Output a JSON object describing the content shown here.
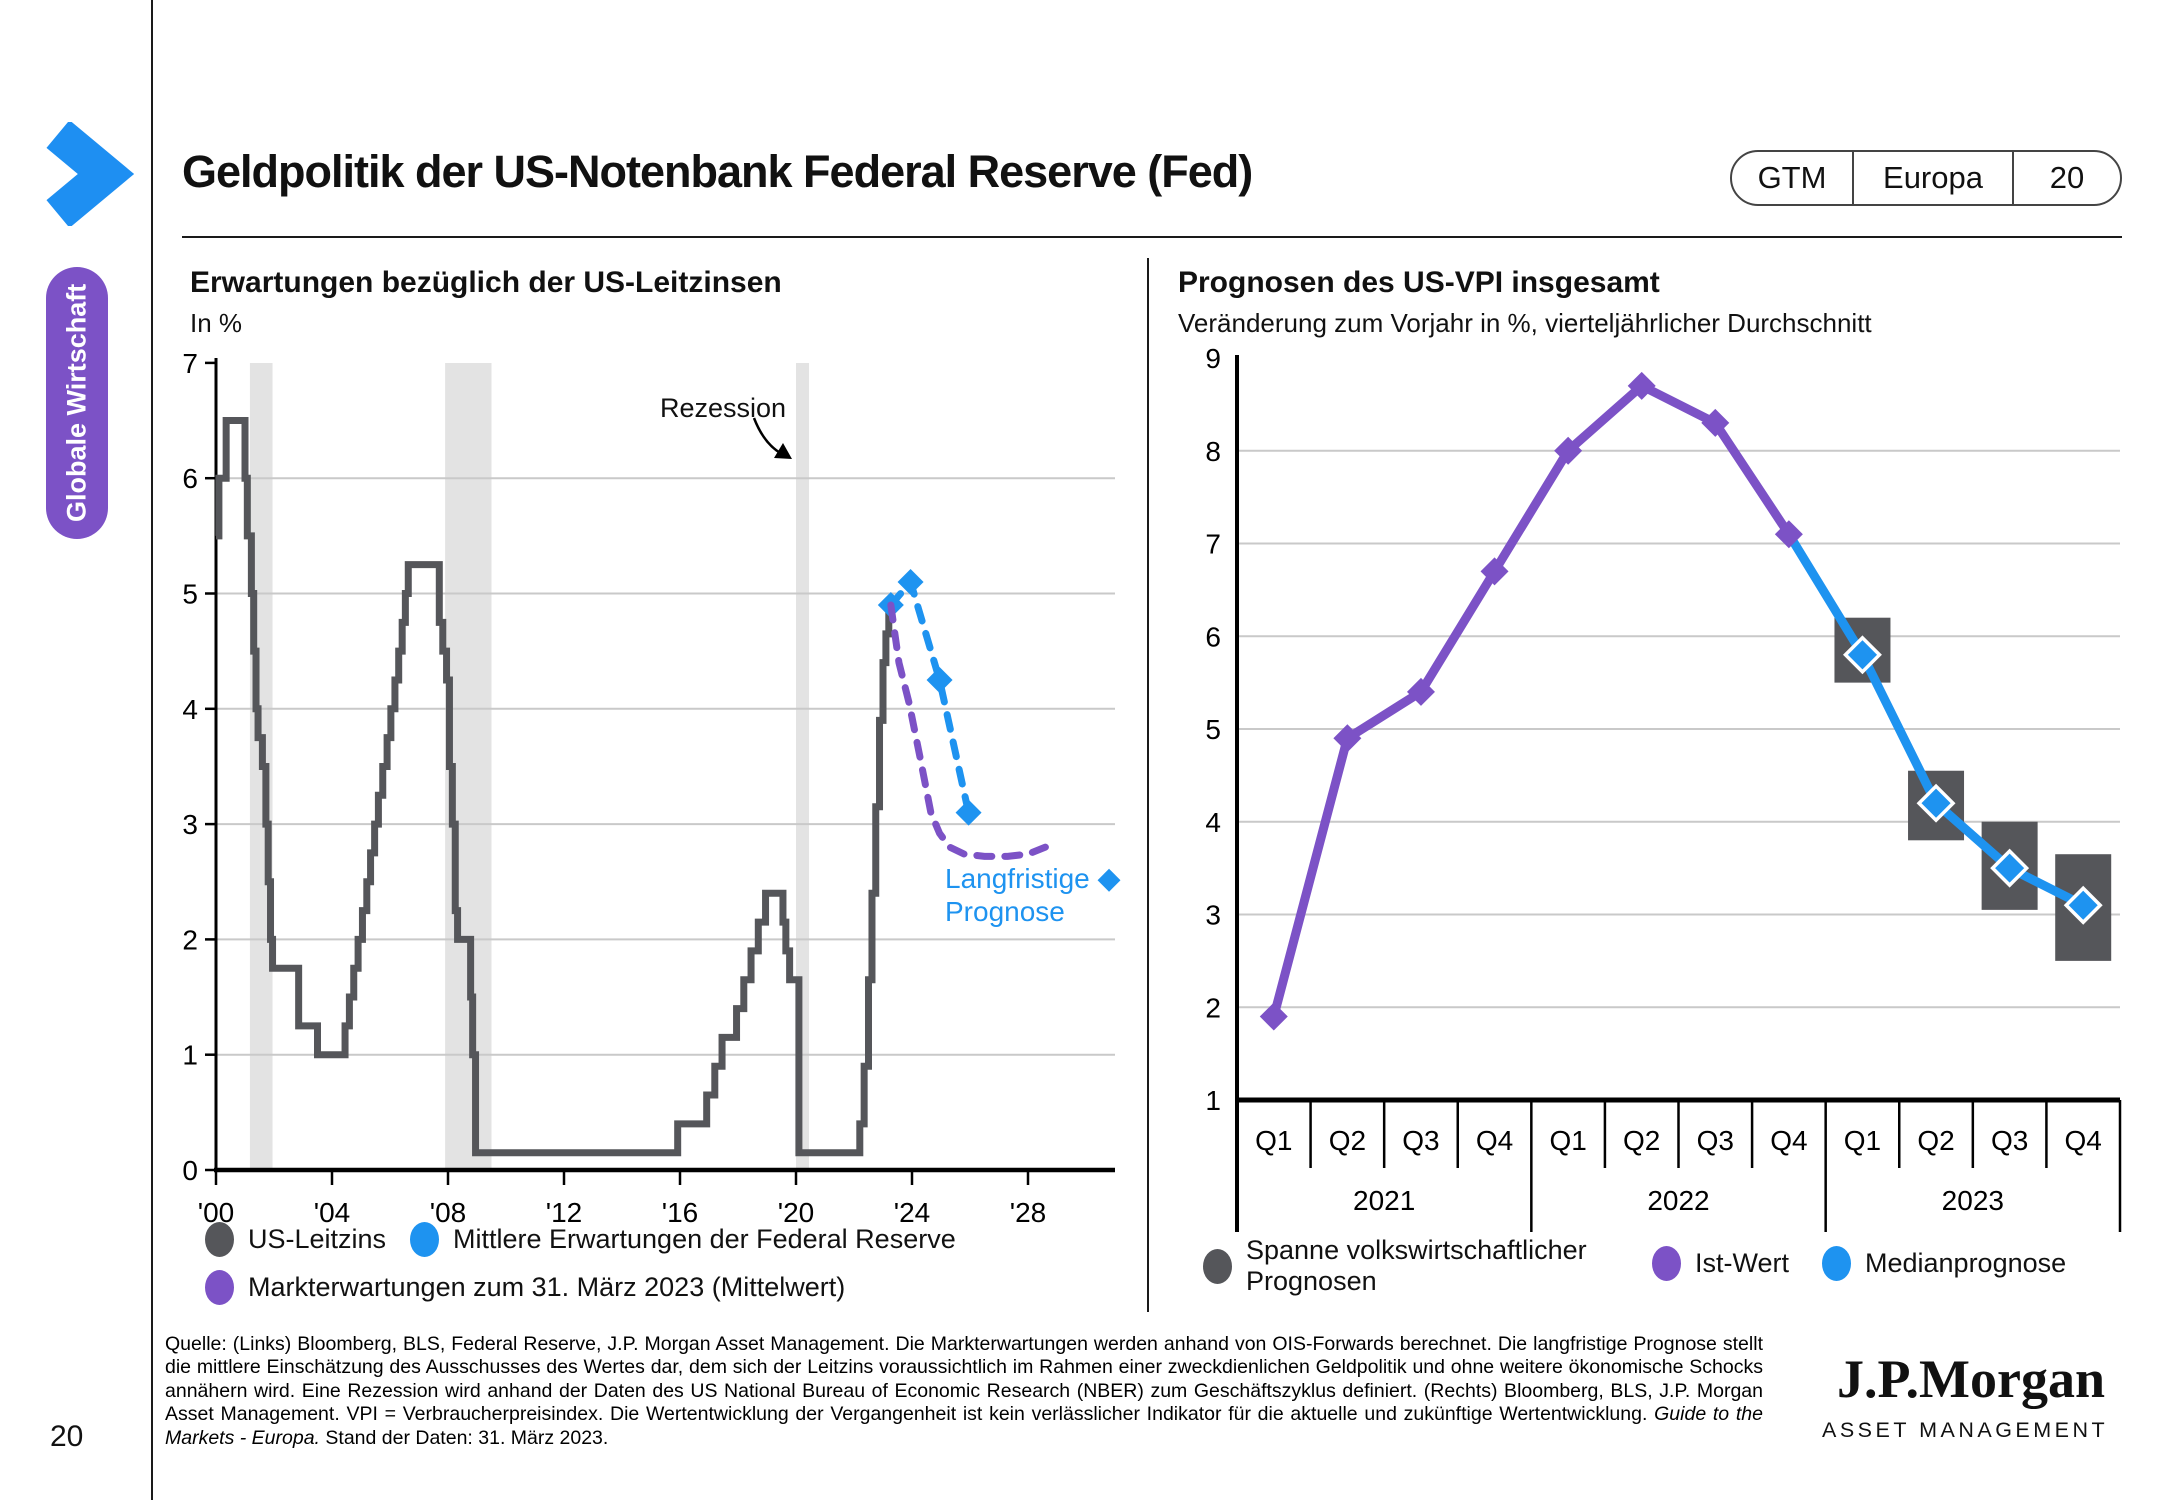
{
  "palette": {
    "blue": "#1E93F0",
    "purple": "#7C52C6",
    "gray": "#55565A",
    "grid": "#C9C9C9",
    "band": "#E3E3E3",
    "axis": "#000000"
  },
  "sidebar": {
    "section_label": "Globale Wirtschaft"
  },
  "header": {
    "title": "Geldpolitik der US-Notenbank Federal Reserve (Fed)",
    "badge": {
      "brand": "GTM",
      "region": "Europa",
      "page": "20"
    }
  },
  "page_number": "20",
  "left_chart": {
    "title": "Erwartungen bezüglich der US-Leitzinsen",
    "subtitle": "In %",
    "recession_label": "Rezession",
    "longrun_label_line1": "Langfristige",
    "longrun_diamond": "◆",
    "longrun_label_line2": "Prognose",
    "legend": [
      {
        "label": "US-Leitzins",
        "color_key": "gray"
      },
      {
        "label": "Mittlere Erwartungen der Federal Reserve",
        "color_key": "blue"
      },
      {
        "label": "Markterwartungen zum 31. März 2023 (Mittelwert)",
        "color_key": "purple"
      }
    ]
  },
  "right_chart": {
    "title": "Prognosen des US-VPI insgesamt",
    "subtitle": "Veränderung zum Vorjahr in %, vierteljährlicher Durchschnitt",
    "legend": [
      {
        "label": "Spanne volkswirtschaftlicher Prognosen",
        "label_line1": "Spanne volkswirtschaftlicher",
        "label_line2": "Prognosen",
        "color_key": "gray"
      },
      {
        "label": "Ist-Wert",
        "color_key": "purple"
      },
      {
        "label": "Medianprognose",
        "color_key": "blue"
      }
    ]
  },
  "footer": {
    "text": "Quelle: (Links) Bloomberg, BLS, Federal Reserve, J.P. Morgan Asset Management. Die Markterwartungen werden anhand von OIS-Forwards berechnet. Die langfristige Prognose stellt die mittlere Einschätzung des Ausschusses des Wertes dar, dem sich der Leitzins voraussichtlich im Rahmen einer zweckdienlichen Geldpolitik und ohne weitere ökonomische Schocks annähern wird. Eine Rezession wird anhand der Daten des US National Bureau of Economic Research (NBER) zum Geschäftszyklus definiert. (Rechts) Bloomberg, BLS, J.P. Morgan Asset Management. VPI = Verbraucherpreisindex. Die Wertentwicklung der Vergangenheit ist kein verlässlicher Indikator für die aktuelle und zukünftige Wertentwicklung. ",
    "italic": "Guide to the Markets - Europa.",
    "tail": " Stand der Daten: 31. März 2023."
  },
  "logo": {
    "name": "J.P.Morgan",
    "sub": "ASSET MANAGEMENT"
  },
  "chart_data": [
    {
      "type": "line",
      "title": "Erwartungen bezüglich der US-Leitzinsen",
      "ylabel": "In %",
      "ylim": [
        0,
        7
      ],
      "yticks": [
        0,
        1,
        2,
        3,
        4,
        5,
        6,
        7
      ],
      "ygrid": [
        1,
        2,
        3,
        4,
        5,
        6
      ],
      "xlim": [
        2000,
        2031
      ],
      "xticks": [
        {
          "year": 2000,
          "label": "'00"
        },
        {
          "year": 2004,
          "label": "'04"
        },
        {
          "year": 2008,
          "label": "'08"
        },
        {
          "year": 2012,
          "label": "'12"
        },
        {
          "year": 2016,
          "label": "'16"
        },
        {
          "year": 2020,
          "label": "'20"
        },
        {
          "year": 2024,
          "label": "'24"
        },
        {
          "year": 2028,
          "label": "'28"
        }
      ],
      "recession_bands": [
        [
          2001.17,
          2001.95
        ],
        [
          2007.9,
          2009.5
        ],
        [
          2020.0,
          2020.45
        ]
      ],
      "series": [
        {
          "name": "US-Leitzins",
          "color_key": "gray",
          "style": "step",
          "points": [
            [
              2000.0,
              5.5
            ],
            [
              2000.1,
              6.0
            ],
            [
              2000.35,
              6.5
            ],
            [
              2001.0,
              6.0
            ],
            [
              2001.08,
              5.5
            ],
            [
              2001.22,
              5.0
            ],
            [
              2001.3,
              4.5
            ],
            [
              2001.38,
              4.0
            ],
            [
              2001.45,
              3.75
            ],
            [
              2001.6,
              3.5
            ],
            [
              2001.72,
              3.0
            ],
            [
              2001.8,
              2.5
            ],
            [
              2001.88,
              2.0
            ],
            [
              2001.95,
              1.75
            ],
            [
              2002.85,
              1.25
            ],
            [
              2003.5,
              1.0
            ],
            [
              2004.45,
              1.25
            ],
            [
              2004.6,
              1.5
            ],
            [
              2004.75,
              1.75
            ],
            [
              2004.9,
              2.0
            ],
            [
              2005.05,
              2.25
            ],
            [
              2005.2,
              2.5
            ],
            [
              2005.33,
              2.75
            ],
            [
              2005.47,
              3.0
            ],
            [
              2005.6,
              3.25
            ],
            [
              2005.75,
              3.5
            ],
            [
              2005.9,
              3.75
            ],
            [
              2006.03,
              4.0
            ],
            [
              2006.17,
              4.25
            ],
            [
              2006.3,
              4.5
            ],
            [
              2006.42,
              4.75
            ],
            [
              2006.53,
              5.0
            ],
            [
              2006.63,
              5.25
            ],
            [
              2007.7,
              4.75
            ],
            [
              2007.82,
              4.5
            ],
            [
              2007.95,
              4.25
            ],
            [
              2008.05,
              3.5
            ],
            [
              2008.15,
              3.0
            ],
            [
              2008.25,
              2.25
            ],
            [
              2008.33,
              2.0
            ],
            [
              2008.78,
              1.5
            ],
            [
              2008.85,
              1.0
            ],
            [
              2008.95,
              0.15
            ],
            [
              2015.92,
              0.4
            ],
            [
              2016.92,
              0.65
            ],
            [
              2017.2,
              0.9
            ],
            [
              2017.45,
              1.15
            ],
            [
              2017.95,
              1.4
            ],
            [
              2018.2,
              1.65
            ],
            [
              2018.45,
              1.9
            ],
            [
              2018.7,
              2.15
            ],
            [
              2018.95,
              2.4
            ],
            [
              2019.55,
              2.15
            ],
            [
              2019.65,
              1.9
            ],
            [
              2019.78,
              1.65
            ],
            [
              2020.1,
              0.15
            ],
            [
              2022.2,
              0.4
            ],
            [
              2022.35,
              0.9
            ],
            [
              2022.5,
              1.65
            ],
            [
              2022.62,
              2.4
            ],
            [
              2022.75,
              3.15
            ],
            [
              2022.88,
              3.9
            ],
            [
              2023.0,
              4.4
            ],
            [
              2023.1,
              4.65
            ],
            [
              2023.2,
              4.9
            ],
            [
              2023.27,
              4.9
            ]
          ]
        },
        {
          "name": "Mittlere Erwartungen der Federal Reserve",
          "color_key": "blue",
          "style": "dashed",
          "markers": true,
          "points": [
            [
              2023.27,
              4.9
            ],
            [
              2023.95,
              5.1
            ],
            [
              2024.95,
              4.25
            ],
            [
              2025.95,
              3.1
            ]
          ]
        },
        {
          "name": "Markterwartungen zum 31. März 2023 (Mittelwert)",
          "color_key": "purple",
          "style": "dashed",
          "markers": false,
          "points": [
            [
              2023.27,
              4.9
            ],
            [
              2023.55,
              4.4
            ],
            [
              2023.9,
              4.05
            ],
            [
              2024.3,
              3.55
            ],
            [
              2024.65,
              3.1
            ],
            [
              2024.95,
              2.92
            ],
            [
              2025.3,
              2.8
            ],
            [
              2025.8,
              2.74
            ],
            [
              2026.5,
              2.72
            ],
            [
              2027.3,
              2.72
            ],
            [
              2028.0,
              2.74
            ],
            [
              2028.6,
              2.8
            ]
          ]
        }
      ],
      "annotations": {
        "recession": "Rezession",
        "longrun": "Langfristige Prognose",
        "longrun_value": 2.5
      }
    },
    {
      "type": "line",
      "title": "Prognosen des US-VPI insgesamt",
      "subtitle": "Veränderung zum Vorjahr in %, vierteljährlicher Durchschnitt",
      "ylim": [
        1,
        9
      ],
      "yticks": [
        1,
        2,
        3,
        4,
        5,
        6,
        7,
        8,
        9
      ],
      "ygrid": [
        2,
        3,
        4,
        5,
        6,
        7,
        8
      ],
      "quarters": [
        "Q1",
        "Q2",
        "Q3",
        "Q4",
        "Q1",
        "Q2",
        "Q3",
        "Q4",
        "Q1",
        "Q2",
        "Q3",
        "Q4"
      ],
      "years": [
        "2021",
        "2022",
        "2023"
      ],
      "series": [
        {
          "name": "Ist-Wert",
          "color_key": "purple",
          "start_index": 0,
          "values": [
            1.9,
            4.9,
            5.4,
            6.7,
            8.0,
            8.7,
            8.3,
            7.1
          ]
        },
        {
          "name": "Medianprognose",
          "color_key": "blue",
          "start_index": 7,
          "values": [
            7.1,
            5.8,
            4.2,
            3.5,
            3.1
          ]
        }
      ],
      "range_boxes": {
        "name": "Spanne volkswirtschaftlicher Prognosen",
        "start_index": 8,
        "ranges": [
          [
            5.5,
            6.2
          ],
          [
            3.8,
            4.55
          ],
          [
            3.05,
            4.0
          ],
          [
            2.5,
            3.65
          ]
        ]
      }
    }
  ]
}
